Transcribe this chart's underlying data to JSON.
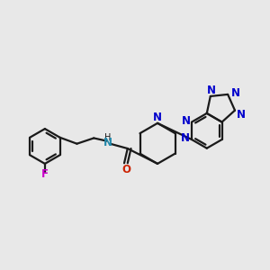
{
  "bg_color": "#e8e8e8",
  "bond_color": "#1a1a1a",
  "n_color": "#0000cc",
  "nh_color": "#2288aa",
  "o_color": "#cc2200",
  "f_color": "#cc00cc",
  "font_size": 8.5,
  "line_width": 1.6,
  "xlim": [
    0.0,
    9.5
  ],
  "ylim": [
    2.0,
    8.5
  ]
}
